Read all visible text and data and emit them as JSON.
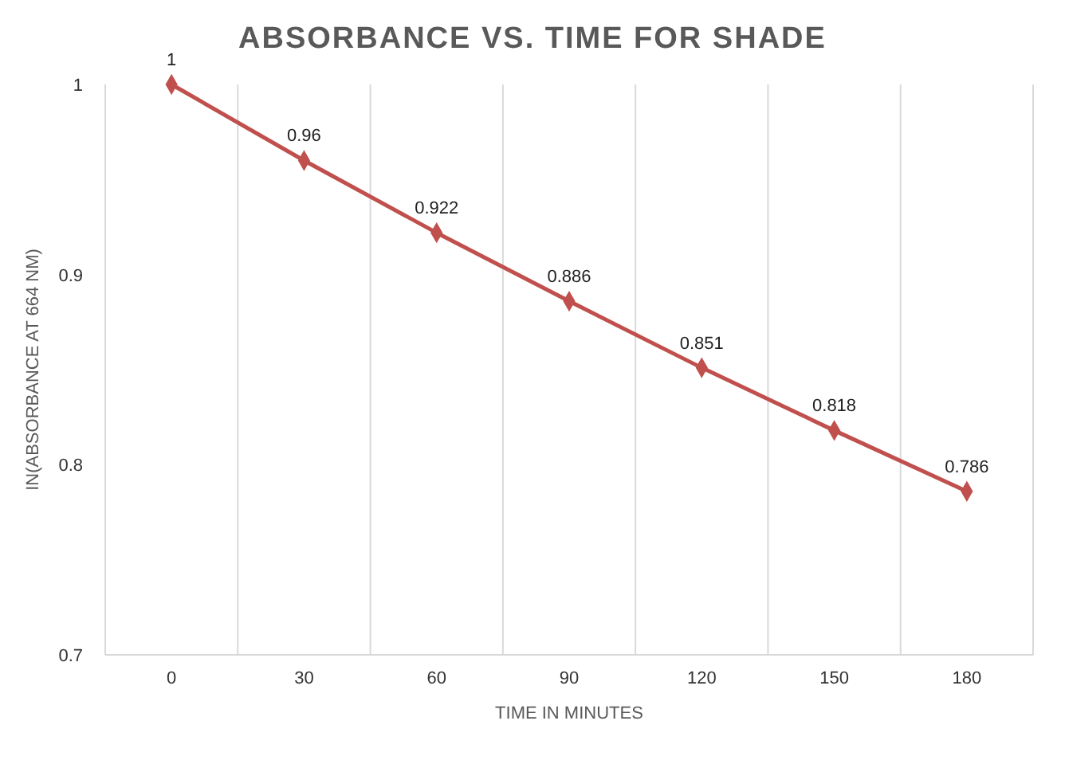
{
  "chart_data": {
    "type": "line",
    "title": "ABSORBANCE VS. TIME FOR SHADE",
    "xlabel": "TIME IN MINUTES",
    "ylabel": "IN(ABSORBANCE AT 664 NM)",
    "categories": [
      "0",
      "30",
      "60",
      "90",
      "120",
      "150",
      "180"
    ],
    "series": [
      {
        "color": "#c0504d",
        "values": [
          1,
          0.96,
          0.922,
          0.886,
          0.851,
          0.818,
          0.786
        ]
      }
    ],
    "ylim": [
      0.7,
      1
    ],
    "yticks": [
      0.7,
      0.8,
      0.9,
      1
    ],
    "grid": "x",
    "marker": "diamond",
    "data_labels": true
  }
}
